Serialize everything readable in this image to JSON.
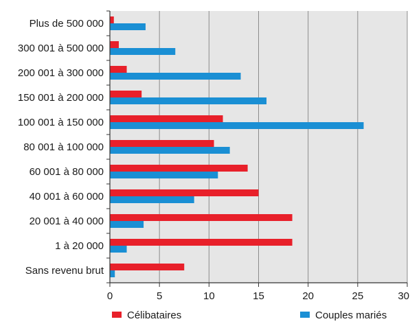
{
  "chart_data": {
    "type": "bar",
    "orientation": "horizontal",
    "categories": [
      "Plus de 500 000",
      "300 001 à 500 000",
      "200 001 à 300 000",
      "150 001 à 200 000",
      "100 001 à 150 000",
      "80 001 à 100 000",
      "60 001 à 80 000",
      "40 001 à 60 000",
      "20 001 à 40 000",
      "1 à 20 000",
      "Sans revenu brut"
    ],
    "series": [
      {
        "name": "Célibataires",
        "color": "#e8202a",
        "values": [
          0.4,
          0.9,
          1.7,
          3.2,
          11.4,
          10.5,
          13.9,
          15.0,
          18.4,
          18.4,
          7.5
        ]
      },
      {
        "name": "Couples mariés",
        "color": "#1a8fd4",
        "values": [
          3.6,
          6.6,
          13.2,
          15.8,
          25.6,
          12.1,
          10.9,
          8.5,
          3.4,
          1.7,
          0.5
        ]
      }
    ],
    "xlim": [
      0,
      30
    ],
    "xticks": [
      0,
      5,
      10,
      15,
      20,
      25,
      30
    ],
    "grid": true,
    "legend_position": "bottom",
    "plot_background": "#e6e6e6"
  }
}
